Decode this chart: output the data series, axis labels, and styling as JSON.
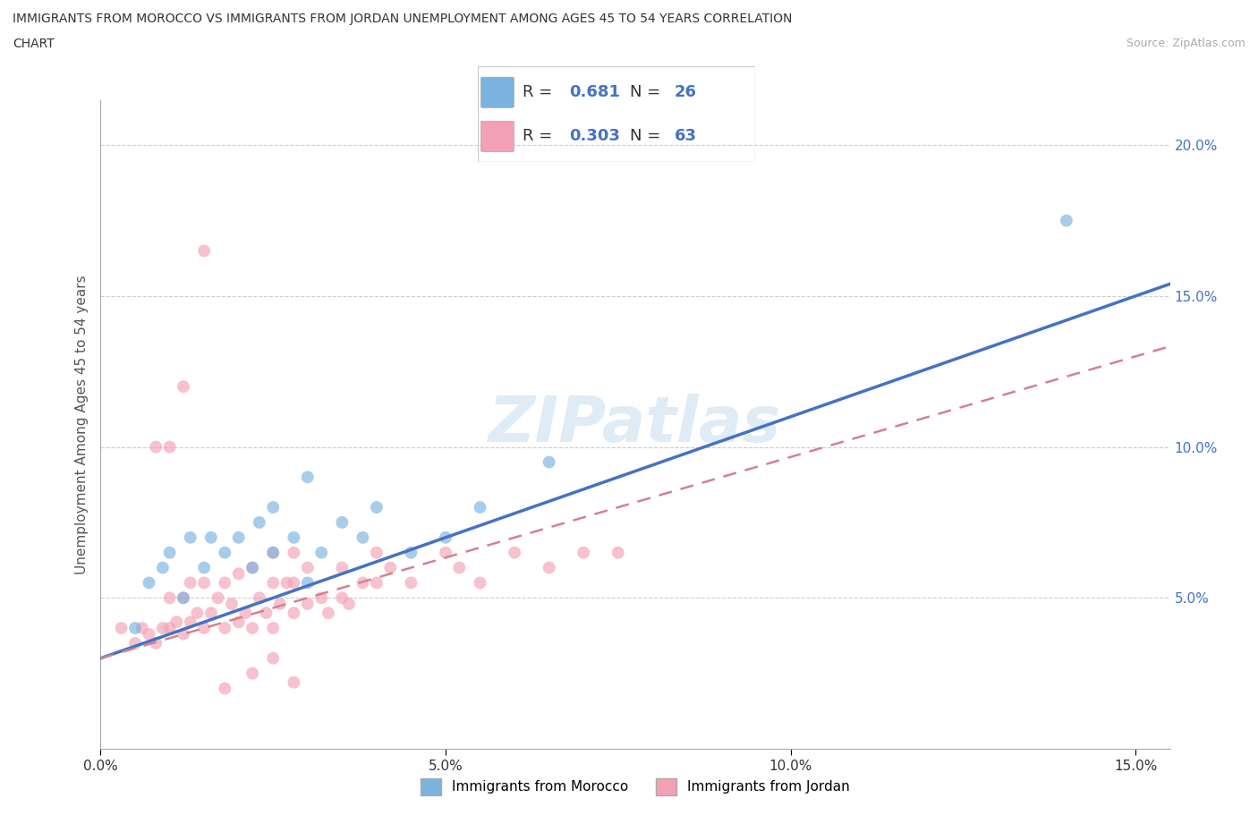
{
  "title_line1": "IMMIGRANTS FROM MOROCCO VS IMMIGRANTS FROM JORDAN UNEMPLOYMENT AMONG AGES 45 TO 54 YEARS CORRELATION",
  "title_line2": "CHART",
  "source": "Source: ZipAtlas.com",
  "ylabel": "Unemployment Among Ages 45 to 54 years",
  "xlim": [
    0,
    0.155
  ],
  "ylim": [
    0,
    0.215
  ],
  "x_ticks": [
    0.0,
    0.05,
    0.1,
    0.15
  ],
  "y_ticks": [
    0.05,
    0.1,
    0.15,
    0.2
  ],
  "x_tick_labels": [
    "0.0%",
    "5.0%",
    "10.0%",
    "15.0%"
  ],
  "y_tick_labels": [
    "5.0%",
    "10.0%",
    "15.0%",
    "20.0%"
  ],
  "morocco_color": "#7ab3e0",
  "jordan_color": "#f4a0b5",
  "morocco_line_color": "#4472c4",
  "jordan_line_color": "#d48090",
  "morocco_R": 0.681,
  "morocco_N": 26,
  "jordan_R": 0.303,
  "jordan_N": 63,
  "watermark": "ZIPatlas",
  "legend_morocco": "Immigrants from Morocco",
  "legend_jordan": "Immigrants from Jordan",
  "morocco_x": [
    0.005,
    0.007,
    0.009,
    0.01,
    0.012,
    0.013,
    0.015,
    0.016,
    0.018,
    0.02,
    0.022,
    0.023,
    0.025,
    0.025,
    0.028,
    0.03,
    0.032,
    0.035,
    0.038,
    0.04,
    0.045,
    0.05,
    0.055,
    0.065,
    0.14,
    0.03
  ],
  "morocco_y": [
    0.04,
    0.055,
    0.06,
    0.065,
    0.05,
    0.07,
    0.06,
    0.07,
    0.065,
    0.07,
    0.06,
    0.075,
    0.065,
    0.08,
    0.07,
    0.055,
    0.065,
    0.075,
    0.07,
    0.08,
    0.065,
    0.07,
    0.08,
    0.095,
    0.175,
    0.09
  ],
  "jordan_x": [
    0.003,
    0.005,
    0.006,
    0.007,
    0.008,
    0.009,
    0.01,
    0.01,
    0.011,
    0.012,
    0.012,
    0.013,
    0.013,
    0.014,
    0.015,
    0.015,
    0.016,
    0.017,
    0.018,
    0.018,
    0.019,
    0.02,
    0.02,
    0.021,
    0.022,
    0.022,
    0.023,
    0.024,
    0.025,
    0.025,
    0.025,
    0.026,
    0.027,
    0.028,
    0.028,
    0.028,
    0.03,
    0.03,
    0.032,
    0.033,
    0.035,
    0.035,
    0.036,
    0.038,
    0.04,
    0.04,
    0.042,
    0.045,
    0.05,
    0.052,
    0.055,
    0.06,
    0.065,
    0.07,
    0.075,
    0.008,
    0.01,
    0.012,
    0.015,
    0.018,
    0.022,
    0.025,
    0.028
  ],
  "jordan_y": [
    0.04,
    0.035,
    0.04,
    0.038,
    0.035,
    0.04,
    0.04,
    0.05,
    0.042,
    0.038,
    0.05,
    0.042,
    0.055,
    0.045,
    0.04,
    0.055,
    0.045,
    0.05,
    0.04,
    0.055,
    0.048,
    0.042,
    0.058,
    0.045,
    0.04,
    0.06,
    0.05,
    0.045,
    0.04,
    0.055,
    0.065,
    0.048,
    0.055,
    0.045,
    0.055,
    0.065,
    0.048,
    0.06,
    0.05,
    0.045,
    0.05,
    0.06,
    0.048,
    0.055,
    0.055,
    0.065,
    0.06,
    0.055,
    0.065,
    0.06,
    0.055,
    0.065,
    0.06,
    0.065,
    0.065,
    0.1,
    0.1,
    0.12,
    0.165,
    0.02,
    0.025,
    0.03,
    0.022
  ]
}
